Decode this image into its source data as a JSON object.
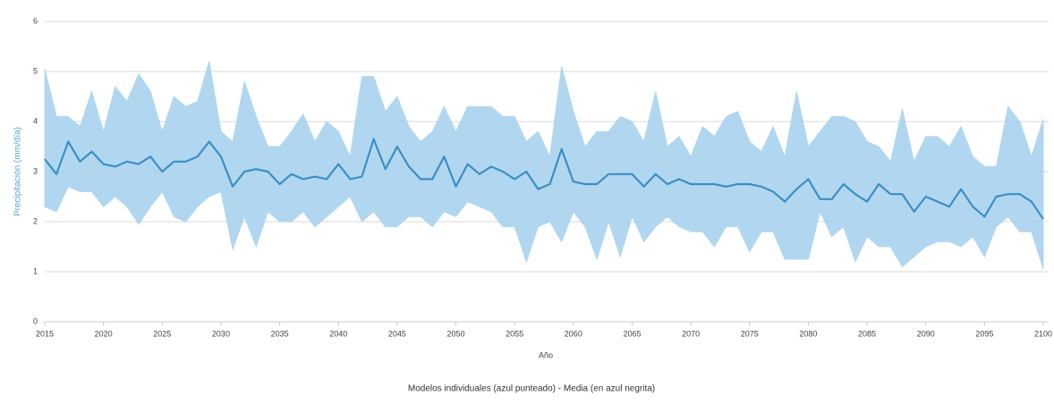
{
  "chart_data": {
    "type": "line",
    "xlabel": "Año",
    "ylabel": "Precipitación (mm/día)",
    "caption": "Modelos individuales (azul punteado) - Media (en azul negrita)",
    "x": [
      2015,
      2016,
      2017,
      2018,
      2019,
      2020,
      2021,
      2022,
      2023,
      2024,
      2025,
      2026,
      2027,
      2028,
      2029,
      2030,
      2031,
      2032,
      2033,
      2034,
      2035,
      2036,
      2037,
      2038,
      2039,
      2040,
      2041,
      2042,
      2043,
      2044,
      2045,
      2046,
      2047,
      2048,
      2049,
      2050,
      2051,
      2052,
      2053,
      2054,
      2055,
      2056,
      2057,
      2058,
      2059,
      2060,
      2061,
      2062,
      2063,
      2064,
      2065,
      2066,
      2067,
      2068,
      2069,
      2070,
      2071,
      2072,
      2073,
      2074,
      2075,
      2076,
      2077,
      2078,
      2079,
      2080,
      2081,
      2082,
      2083,
      2084,
      2085,
      2086,
      2087,
      2088,
      2089,
      2090,
      2091,
      2092,
      2093,
      2094,
      2095,
      2096,
      2097,
      2098,
      2099,
      2100
    ],
    "values": [
      3.25,
      2.95,
      3.6,
      3.2,
      3.4,
      3.15,
      3.1,
      3.2,
      3.15,
      3.3,
      3.0,
      3.2,
      3.2,
      3.3,
      3.6,
      3.3,
      2.7,
      3.0,
      3.05,
      3.0,
      2.75,
      2.95,
      2.85,
      2.9,
      2.85,
      3.15,
      2.85,
      2.9,
      3.65,
      3.05,
      3.5,
      3.1,
      2.85,
      2.85,
      3.3,
      2.7,
      3.15,
      2.95,
      3.1,
      3.0,
      2.85,
      3.0,
      2.65,
      2.75,
      3.45,
      2.8,
      2.75,
      2.75,
      2.95,
      2.95,
      2.95,
      2.7,
      2.95,
      2.75,
      2.85,
      2.75,
      2.75,
      2.75,
      2.7,
      2.75,
      2.75,
      2.7,
      2.6,
      2.4,
      2.65,
      2.85,
      2.45,
      2.45,
      2.75,
      2.55,
      2.4,
      2.75,
      2.55,
      2.55,
      2.2,
      2.5,
      2.4,
      2.3,
      2.65,
      2.3,
      2.1,
      2.5,
      2.55,
      2.55,
      2.4,
      2.05
    ],
    "color": "#3a8fc4",
    "band": {
      "color": "#a9d3ef",
      "high": [
        5.05,
        4.1,
        4.1,
        3.9,
        4.6,
        3.8,
        4.7,
        4.4,
        4.95,
        4.6,
        3.8,
        4.5,
        4.3,
        4.4,
        5.2,
        3.8,
        3.6,
        4.8,
        4.1,
        3.5,
        3.5,
        3.8,
        4.15,
        3.6,
        4.0,
        3.8,
        3.3,
        4.9,
        4.9,
        4.2,
        4.5,
        3.9,
        3.6,
        3.8,
        4.3,
        3.8,
        4.3,
        4.3,
        4.3,
        4.1,
        4.1,
        3.6,
        3.8,
        3.3,
        5.1,
        4.2,
        3.5,
        3.8,
        3.8,
        4.1,
        4.0,
        3.6,
        4.6,
        3.5,
        3.7,
        3.3,
        3.9,
        3.7,
        4.1,
        4.2,
        3.6,
        3.4,
        3.9,
        3.3,
        4.6,
        3.5,
        3.8,
        4.1,
        4.1,
        4.0,
        3.6,
        3.5,
        3.2,
        4.25,
        3.2,
        3.7,
        3.7,
        3.5,
        3.9,
        3.3,
        3.1,
        3.1,
        4.3,
        4.0,
        3.3,
        4.05
      ],
      "low": [
        2.3,
        2.2,
        2.7,
        2.6,
        2.6,
        2.3,
        2.5,
        2.3,
        1.95,
        2.3,
        2.6,
        2.1,
        2.0,
        2.3,
        2.5,
        2.6,
        1.45,
        2.1,
        1.5,
        2.2,
        2.0,
        2.0,
        2.2,
        1.9,
        2.1,
        2.3,
        2.5,
        2.0,
        2.2,
        1.9,
        1.9,
        2.1,
        2.1,
        1.9,
        2.2,
        2.1,
        2.4,
        2.3,
        2.2,
        1.9,
        1.9,
        1.2,
        1.9,
        2.0,
        1.6,
        2.2,
        1.9,
        1.25,
        2.0,
        1.3,
        2.1,
        1.6,
        1.9,
        2.1,
        1.9,
        1.8,
        1.8,
        1.5,
        1.9,
        1.9,
        1.4,
        1.8,
        1.8,
        1.25,
        1.25,
        1.25,
        2.2,
        1.7,
        1.9,
        1.2,
        1.7,
        1.5,
        1.5,
        1.1,
        1.3,
        1.5,
        1.6,
        1.6,
        1.5,
        1.7,
        1.3,
        1.9,
        2.1,
        1.8,
        1.8,
        1.05
      ]
    },
    "xlim": [
      2015,
      2100
    ],
    "xticks": [
      2015,
      2020,
      2025,
      2030,
      2035,
      2040,
      2045,
      2050,
      2055,
      2060,
      2065,
      2070,
      2075,
      2080,
      2085,
      2090,
      2095,
      2100
    ],
    "ylim": [
      0,
      6
    ],
    "yticks": [
      0,
      1,
      2,
      3,
      4,
      5,
      6
    ],
    "grid": true
  }
}
